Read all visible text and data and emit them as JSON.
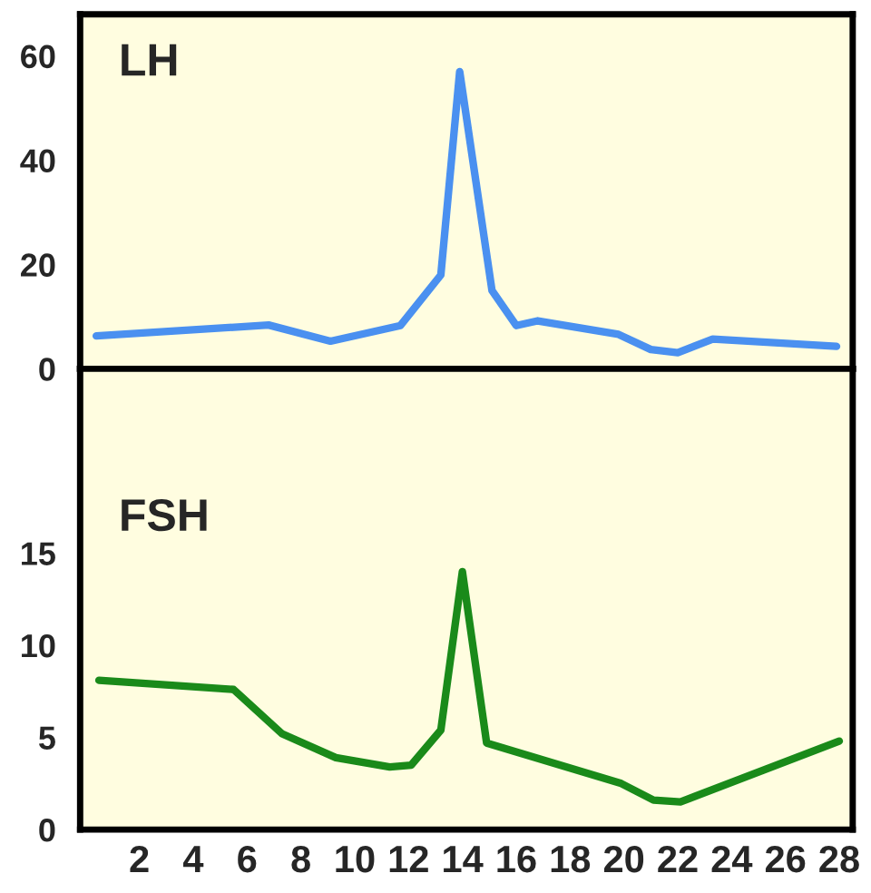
{
  "chart_data": [
    {
      "type": "line",
      "title": "LH",
      "tick_labels": "y",
      "marker": "none",
      "line_style": "solid",
      "xlim": [
        -0.2,
        28.5
      ],
      "xticks": [
        2,
        4,
        6,
        8,
        10,
        12,
        14,
        16,
        18,
        20,
        22,
        24,
        26,
        28
      ],
      "ylim": [
        0,
        68
      ],
      "yticks": [
        0,
        20,
        40,
        60
      ],
      "series": [
        {
          "color": "#4a90f0",
          "x": [
            0.4,
            6.8,
            9.1,
            11.7,
            13.2,
            13.9,
            15.1,
            16.0,
            16.8,
            19.8,
            21.0,
            22.0,
            23.3,
            27.9
          ],
          "values": [
            6.3,
            8.4,
            5.3,
            8.3,
            18,
            57,
            15,
            8.3,
            9.2,
            6.6,
            3.7,
            3.1,
            5.7,
            4.3
          ]
        }
      ]
    },
    {
      "type": "line",
      "title": "FSH",
      "marker": "none",
      "line_style": "solid",
      "xlim": [
        -0.2,
        28.5
      ],
      "xticks": [
        2,
        4,
        6,
        8,
        10,
        12,
        14,
        16,
        18,
        20,
        22,
        24,
        26,
        28
      ],
      "ylim": [
        0,
        25
      ],
      "yticks": [
        0,
        5,
        10,
        15
      ],
      "series": [
        {
          "color": "#1a8a1a",
          "x": [
            0.5,
            5.5,
            7.3,
            9.3,
            11.3,
            12.1,
            13.2,
            14.0,
            14.9,
            19.9,
            21.1,
            22.1,
            28.0
          ],
          "values": [
            8.1,
            7.6,
            5.2,
            3.9,
            3.4,
            3.5,
            5.4,
            14,
            4.7,
            2.5,
            1.6,
            1.5,
            4.8
          ]
        }
      ]
    }
  ]
}
